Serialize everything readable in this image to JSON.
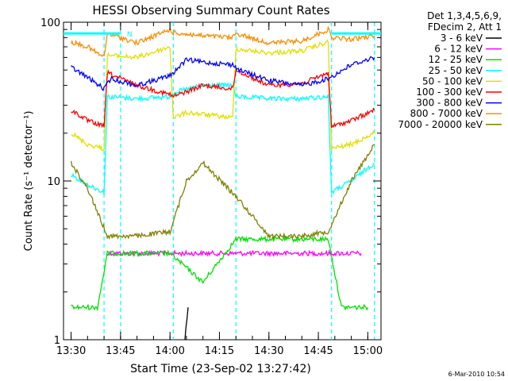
{
  "chart_data": {
    "type": "line",
    "title": "HESSI Observing Summary Count Rates",
    "xlabel": "Start Time (23-Sep-02 13:27:42)",
    "ylabel": "Count Rate (s⁻¹ detector⁻¹)",
    "yscale": "log",
    "ylim": [
      1,
      100
    ],
    "xlim": [
      "13:27:42",
      "15:04:00"
    ],
    "x_ticks": [
      "13:30",
      "13:45",
      "14:00",
      "14:15",
      "14:30",
      "14:45",
      "15:00"
    ],
    "y_ticks": [
      "1",
      "10",
      "100"
    ],
    "legend_header": [
      "Det 1,3,4,5,6,9,",
      "FDecim 2, Att 1"
    ],
    "legend_position": "right",
    "footer_date": "6-Mar-2010 10:54",
    "top_marker": "N",
    "vertical_markers": [
      "13:40:00",
      "13:45:00",
      "14:01:00",
      "14:20:00",
      "14:49:00",
      "15:02:00"
    ],
    "series": [
      {
        "name": "3 - 6 keV",
        "color": "#000000",
        "x": [
          "14:04:30",
          "14:05:30"
        ],
        "y": [
          1.0,
          1.6
        ]
      },
      {
        "name": "6 - 12 keV",
        "color": "#ff00ff",
        "x": [
          "13:41:00",
          "13:50:00",
          "14:00:00",
          "14:10:00",
          "14:20:00",
          "14:30:00",
          "14:40:00",
          "14:50:00",
          "14:58:00"
        ],
        "y": [
          3.5,
          3.5,
          3.5,
          3.5,
          3.5,
          3.5,
          3.5,
          3.5,
          3.5
        ]
      },
      {
        "name": "12 - 25 keV",
        "color": "#00e000",
        "x": [
          "13:30:00",
          "13:38:00",
          "13:41:00",
          "13:50:00",
          "14:00:00",
          "14:10:00",
          "14:20:00",
          "14:30:00",
          "14:40:00",
          "14:48:00",
          "14:52:00",
          "15:00:00"
        ],
        "y": [
          1.6,
          1.6,
          3.5,
          3.5,
          3.5,
          2.3,
          4.3,
          4.3,
          4.3,
          4.3,
          1.6,
          1.6
        ]
      },
      {
        "name": "25 - 50 keV",
        "color": "#00ffff",
        "x": [
          "13:30:00",
          "13:35:00",
          "13:40:00",
          "13:41:00",
          "13:50:00",
          "14:00:00",
          "14:01:00",
          "14:10:00",
          "14:19:00",
          "14:20:00",
          "14:30:00",
          "14:40:00",
          "14:48:00",
          "14:49:00",
          "14:55:00",
          "15:02:00"
        ],
        "y": [
          11.0,
          9.5,
          8.5,
          34.0,
          33.0,
          34.0,
          36.0,
          40.0,
          40.0,
          34.0,
          33.0,
          33.0,
          34.0,
          8.5,
          10.0,
          13.0
        ]
      },
      {
        "name": "50 - 100 keV",
        "color": "#e0e000",
        "x": [
          "13:30:00",
          "13:35:00",
          "13:40:00",
          "13:41:00",
          "13:50:00",
          "14:00:00",
          "14:01:00",
          "14:05:00",
          "14:19:00",
          "14:20:00",
          "14:30:00",
          "14:40:00",
          "14:48:00",
          "14:49:00",
          "14:55:00",
          "15:02:00"
        ],
        "y": [
          20.0,
          17.0,
          16.0,
          62.0,
          60.0,
          70.0,
          25.0,
          27.0,
          25.0,
          68.0,
          64.0,
          66.0,
          75.0,
          16.0,
          17.0,
          20.0
        ]
      },
      {
        "name": "100 - 300 keV",
        "color": "#ff0000",
        "x": [
          "13:30:00",
          "13:35:00",
          "13:40:00",
          "13:41:00",
          "13:50:00",
          "14:00:00",
          "14:01:00",
          "14:10:00",
          "14:19:00",
          "14:20:00",
          "14:30:00",
          "14:40:00",
          "14:48:00",
          "14:49:00",
          "14:55:00",
          "15:02:00"
        ],
        "y": [
          28.0,
          24.0,
          22.0,
          48.0,
          40.0,
          35.0,
          34.0,
          40.0,
          38.0,
          50.0,
          40.0,
          41.0,
          48.0,
          22.0,
          24.0,
          28.0
        ]
      },
      {
        "name": "300 - 800 keV",
        "color": "#0000ff",
        "x": [
          "13:30:00",
          "13:35:00",
          "13:40:00",
          "13:42:00",
          "13:50:00",
          "14:00:00",
          "14:05:00",
          "14:10:00",
          "14:19:00",
          "14:21:00",
          "14:30:00",
          "14:40:00",
          "14:48:00",
          "14:55:00",
          "15:02:00"
        ],
        "y": [
          52.0,
          45.0,
          38.0,
          44.0,
          40.0,
          46.0,
          58.0,
          56.0,
          54.0,
          50.0,
          43.0,
          40.0,
          44.0,
          54.0,
          60.0
        ]
      },
      {
        "name": "800 - 7000 keV",
        "color": "#ff8c00",
        "x": [
          "13:30:00",
          "13:35:00",
          "13:40:00",
          "13:41:00",
          "13:50:00",
          "14:00:00",
          "14:01:00",
          "14:10:00",
          "14:19:00",
          "14:20:00",
          "14:30:00",
          "14:40:00",
          "14:48:00",
          "14:49:00",
          "14:55:00",
          "15:02:00"
        ],
        "y": [
          75.0,
          70.0,
          60.0,
          85.0,
          74.0,
          90.0,
          86.0,
          82.0,
          80.0,
          85.0,
          74.0,
          76.0,
          90.0,
          80.0,
          78.0,
          82.0
        ]
      },
      {
        "name": "7000 - 20000 keV",
        "color": "#808000",
        "x": [
          "13:30:00",
          "13:35:00",
          "13:41:00",
          "13:50:00",
          "14:00:00",
          "14:05:00",
          "14:10:00",
          "14:20:00",
          "14:30:00",
          "14:40:00",
          "14:48:00",
          "14:55:00",
          "15:02:00"
        ],
        "y": [
          13.0,
          9.0,
          4.5,
          4.5,
          4.8,
          10.0,
          13.0,
          8.0,
          4.5,
          4.5,
          4.8,
          10.0,
          17.0
        ]
      }
    ]
  }
}
